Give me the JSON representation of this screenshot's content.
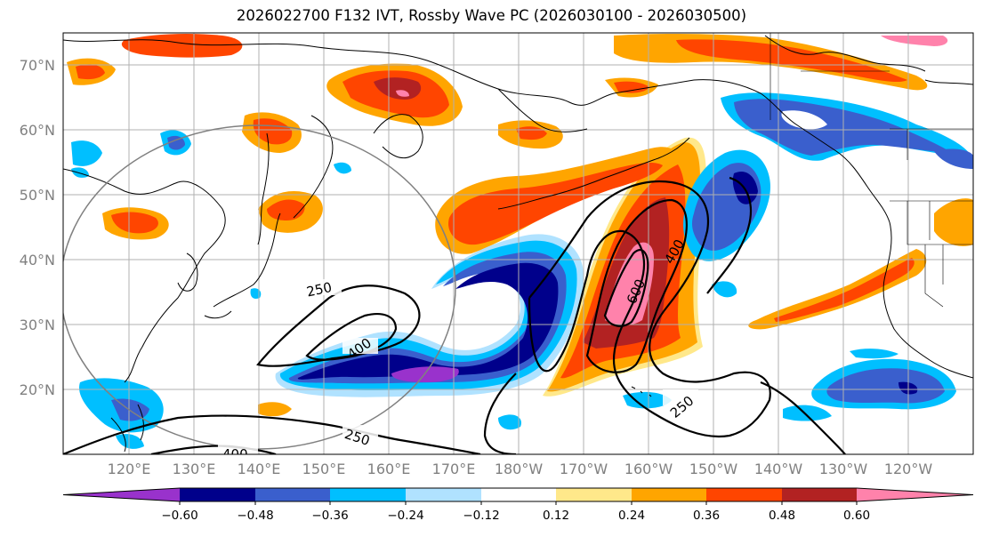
{
  "title": "2026022700 F132 IVT, Rossby Wave PC (2026030100 - 2026030500)",
  "lat_labels": [
    "70°N",
    "60°N",
    "50°N",
    "40°N",
    "30°N",
    "20°N"
  ],
  "lon_labels": [
    "120°E",
    "130°E",
    "140°E",
    "150°E",
    "160°E",
    "170°E",
    "180°W",
    "170°W",
    "160°W",
    "150°W",
    "140°W",
    "130°W",
    "120°W"
  ],
  "contour_labels": [
    "250",
    "400",
    "600",
    "400",
    "250",
    "250",
    "400"
  ],
  "colorbar": {
    "ticks": [
      "−0.60",
      "−0.48",
      "−0.36",
      "−0.24",
      "−0.12",
      "0.12",
      "0.24",
      "0.36",
      "0.48",
      "0.60"
    ],
    "colors": [
      "#9932cc",
      "#00008b",
      "#3a5fcd",
      "#00bfff",
      "#b0e2ff",
      "#ffffff",
      "#ffe88a",
      "#ffa500",
      "#ff4500",
      "#b22222",
      "#ff82ab"
    ]
  },
  "fill_colors": {
    "neg_060": "#9932cc",
    "neg_048": "#00008b",
    "neg_036": "#3a5fcd",
    "neg_024": "#00bfff",
    "neg_012": "#b0e2ff",
    "pos_012": "#ffe88a",
    "pos_024": "#ffa500",
    "pos_036": "#ff4500",
    "pos_048": "#b22222",
    "pos_060": "#ff82ab"
  }
}
